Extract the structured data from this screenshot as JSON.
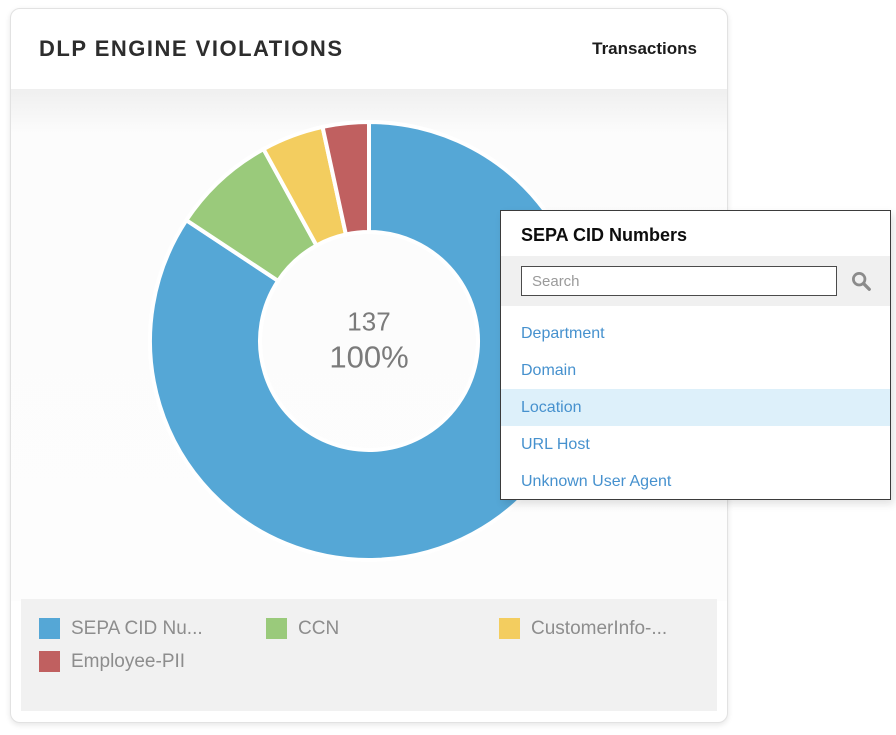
{
  "card": {
    "title": "DLP ENGINE VIOLATIONS",
    "header_action": "Transactions"
  },
  "chart_data": {
    "type": "pie",
    "subtype": "donut",
    "title": "DLP ENGINE VIOLATIONS",
    "unit": "Transactions",
    "total": 137,
    "center": {
      "value": "137",
      "percent": "100%"
    },
    "legend_position": "bottom",
    "start_angle_deg": 0,
    "clockwise": true,
    "segments": [
      {
        "label": "SEPA CID Numbers",
        "legend_label": "SEPA CID Nu...",
        "color": "#55a7d6",
        "pct_est": 84.3
      },
      {
        "label": "CCN",
        "legend_label": "CCN",
        "color": "#9aca7b",
        "pct_est": 7.7
      },
      {
        "label": "CustomerInfo-...",
        "legend_label": "CustomerInfo-...",
        "color": "#f3cd5f",
        "pct_est": 4.6
      },
      {
        "label": "Employee-PII",
        "legend_label": "Employee-PII",
        "color": "#c06060",
        "pct_est": 3.4
      }
    ]
  },
  "popup": {
    "title": "SEPA CID Numbers",
    "search": {
      "placeholder": "Search",
      "value": ""
    },
    "items": [
      {
        "label": "Department",
        "highlighted": false
      },
      {
        "label": "Domain",
        "highlighted": false
      },
      {
        "label": "Location",
        "highlighted": true
      },
      {
        "label": "URL Host",
        "highlighted": false
      },
      {
        "label": "Unknown User Agent",
        "highlighted": false
      }
    ]
  },
  "colors": {
    "link_blue": "#4691ce",
    "highlight_row": "#ddf0fa",
    "center_text": "#7b7b7b",
    "legend_text": "#8d8d8d",
    "icon_gray": "#8b8b8b"
  }
}
